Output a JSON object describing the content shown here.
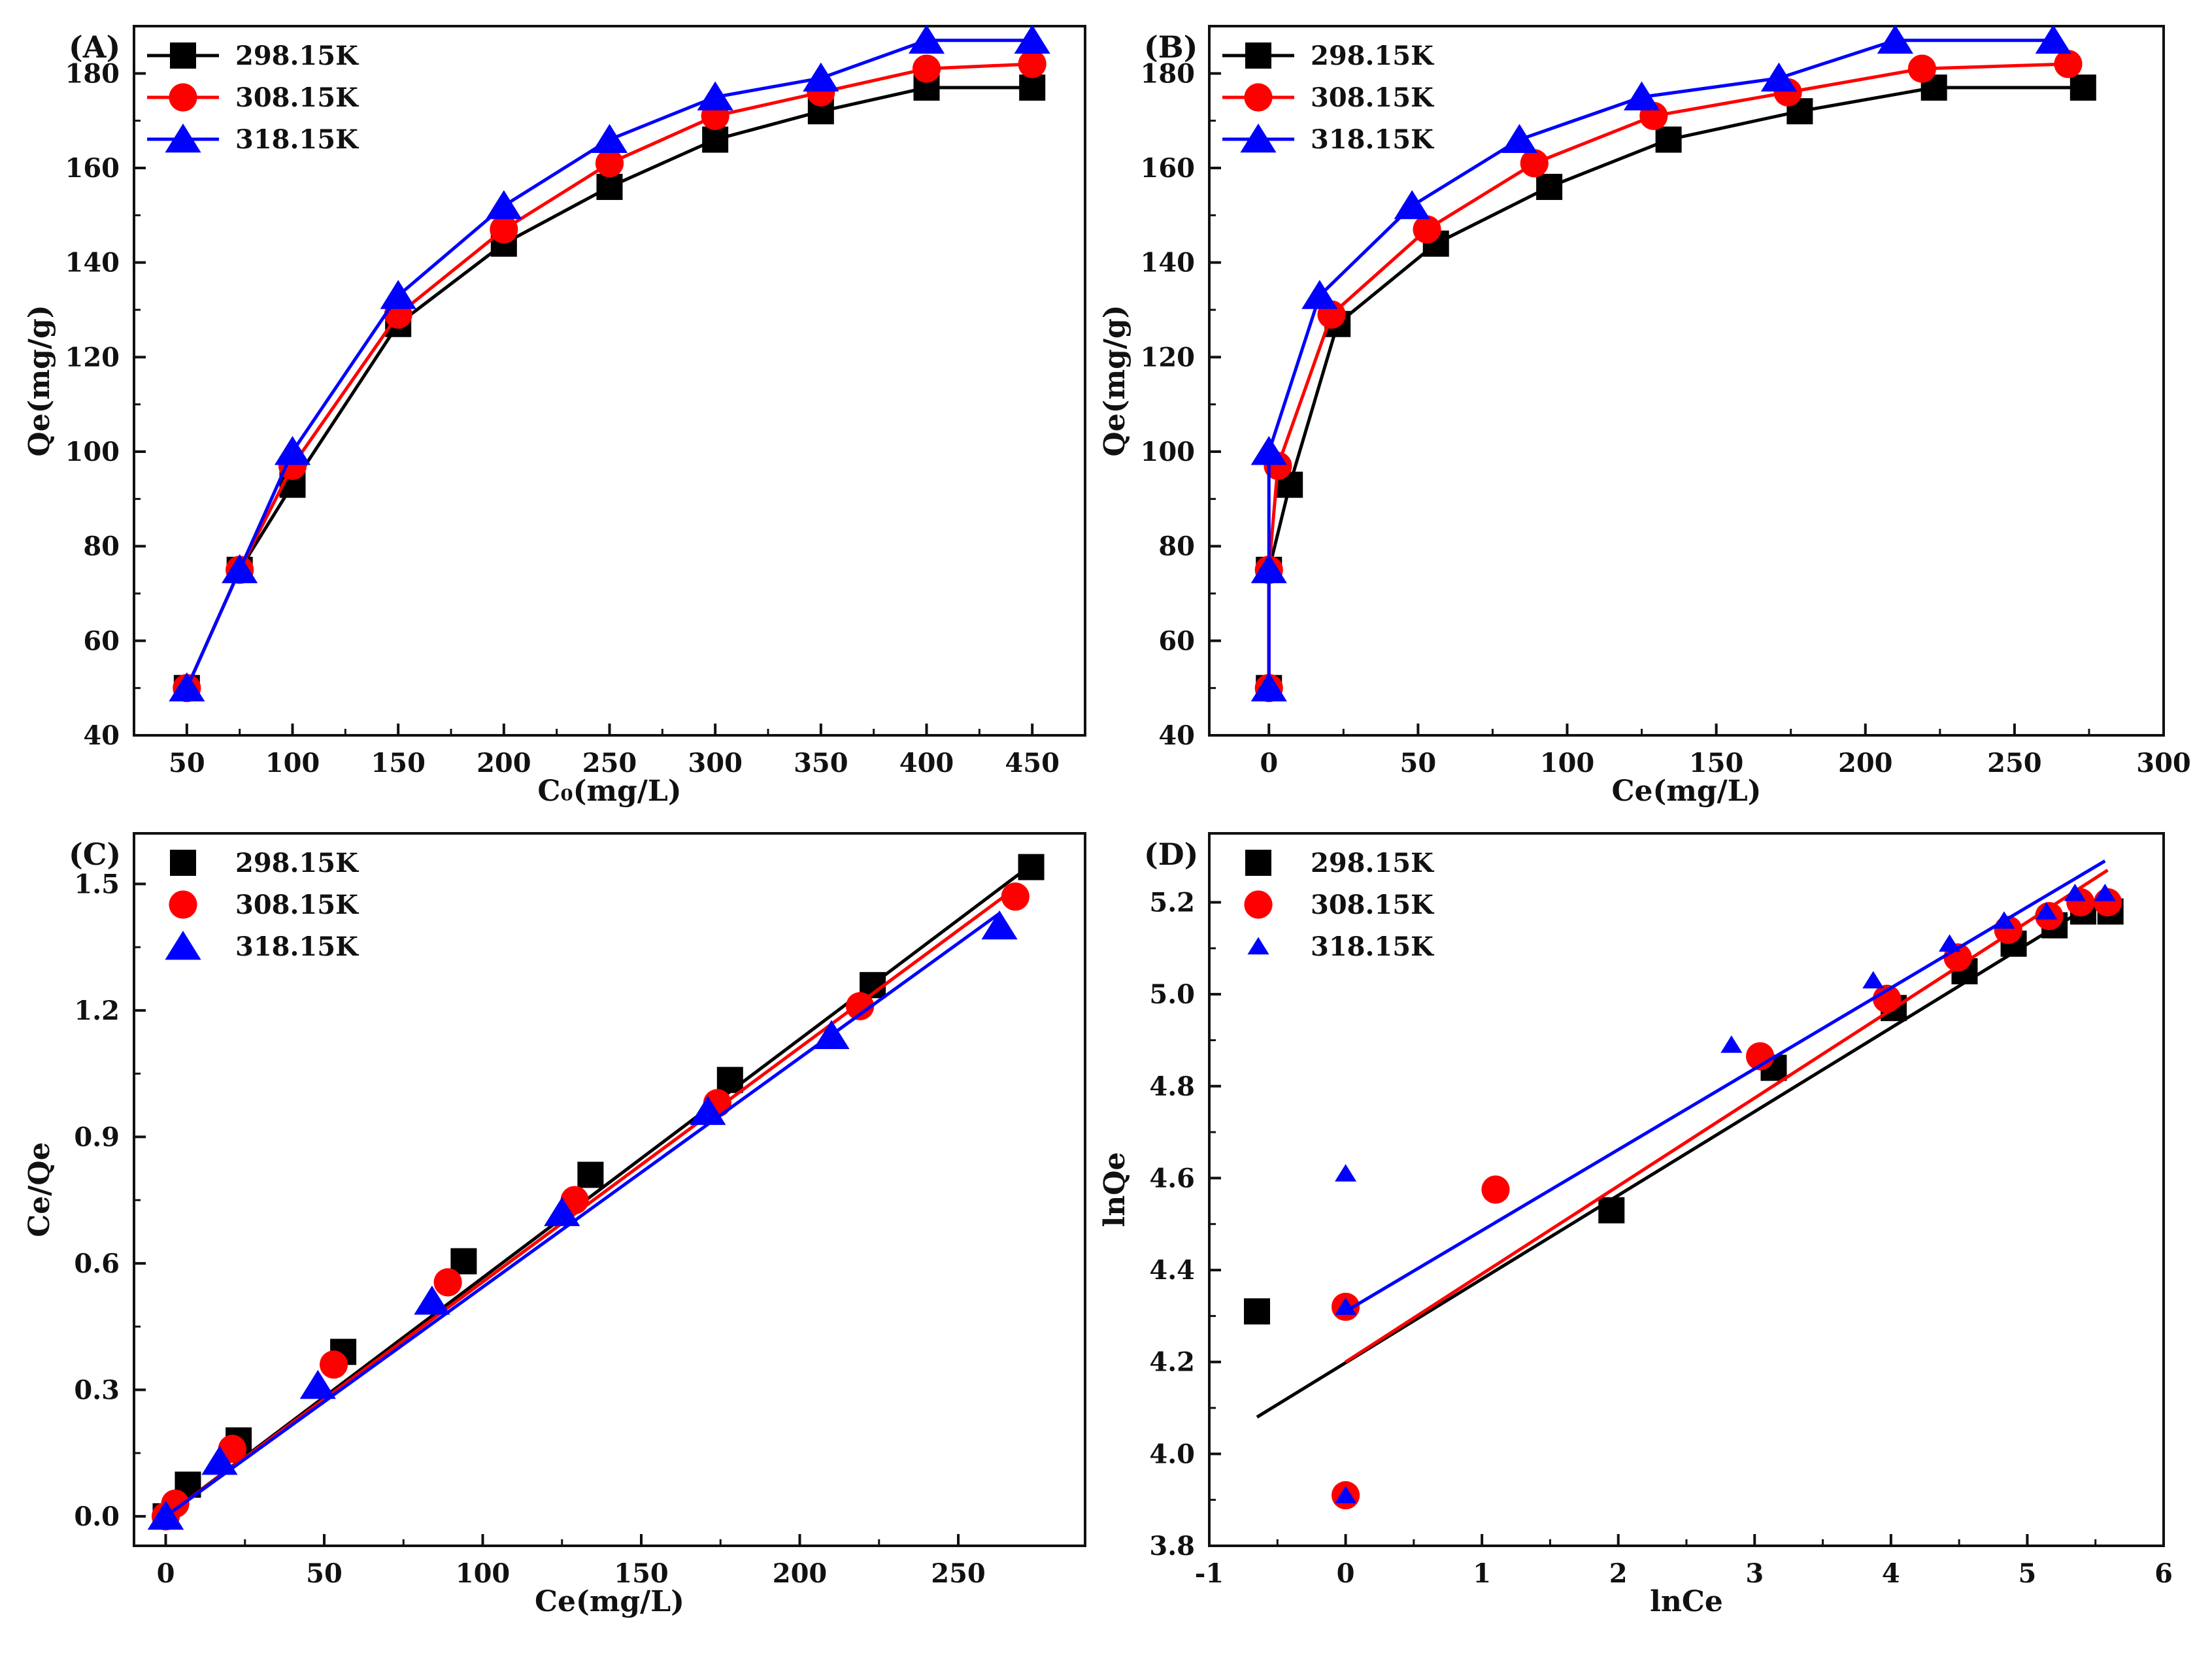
{
  "chart_data": [
    {
      "panel": "(A)",
      "type": "line",
      "xlabel": "C₀(mg/L)",
      "ylabel": "Qe(mg/g)",
      "xlim": [
        25,
        475
      ],
      "ylim": [
        40,
        190
      ],
      "xticks": [
        50,
        100,
        150,
        200,
        250,
        300,
        350,
        400,
        450
      ],
      "yticks": [
        40,
        60,
        80,
        100,
        120,
        140,
        160,
        180
      ],
      "legend_position": "top-left",
      "series": [
        {
          "name": "298.15K",
          "color": "#000000",
          "marker": "square",
          "line": true,
          "x": [
            50,
            75,
            100,
            150,
            200,
            250,
            300,
            350,
            400,
            450
          ],
          "y": [
            50,
            75,
            93,
            127,
            144,
            156,
            166,
            172,
            177,
            177
          ]
        },
        {
          "name": "308.15K",
          "color": "#ff0000",
          "marker": "circle",
          "line": true,
          "x": [
            50,
            75,
            100,
            150,
            200,
            250,
            300,
            350,
            400,
            450
          ],
          "y": [
            50,
            75,
            97,
            129,
            147,
            161,
            171,
            176,
            181,
            182
          ]
        },
        {
          "name": "318.15K",
          "color": "#0000ff",
          "marker": "triangle",
          "line": true,
          "x": [
            50,
            75,
            100,
            150,
            200,
            250,
            300,
            350,
            400,
            450
          ],
          "y": [
            50,
            75,
            100,
            133,
            152,
            166,
            175,
            179,
            187,
            187
          ]
        }
      ]
    },
    {
      "panel": "(B)",
      "type": "line",
      "xlabel": "Ce(mg/L)",
      "ylabel": "Qe(mg/g)",
      "xlim": [
        -20,
        300
      ],
      "ylim": [
        40,
        190
      ],
      "xticks": [
        0,
        50,
        100,
        150,
        200,
        250,
        300
      ],
      "yticks": [
        40,
        60,
        80,
        100,
        120,
        140,
        160,
        180
      ],
      "legend_position": "top-left",
      "series": [
        {
          "name": "298.15K",
          "color": "#000000",
          "marker": "square",
          "line": true,
          "x": [
            0,
            0,
            7,
            23,
            56,
            94,
            134,
            178,
            223,
            273
          ],
          "y": [
            50,
            75,
            93,
            127,
            144,
            156,
            166,
            172,
            177,
            177
          ]
        },
        {
          "name": "308.15K",
          "color": "#ff0000",
          "marker": "circle",
          "line": true,
          "x": [
            0,
            0,
            3,
            21,
            53,
            89,
            129,
            174,
            219,
            268
          ],
          "y": [
            50,
            75,
            97,
            129,
            147,
            161,
            171,
            176,
            181,
            182
          ]
        },
        {
          "name": "318.15K",
          "color": "#0000ff",
          "marker": "triangle",
          "line": true,
          "x": [
            0,
            0,
            0,
            17,
            48,
            84,
            125,
            171,
            210,
            263
          ],
          "y": [
            50,
            75,
            100,
            133,
            152,
            166,
            175,
            179,
            187,
            187
          ]
        }
      ]
    },
    {
      "panel": "(C)",
      "type": "scatter",
      "xlabel": "Ce(mg/L)",
      "ylabel": "Ce/Qe",
      "xlim": [
        -10,
        290
      ],
      "ylim": [
        -0.07,
        1.62
      ],
      "xticks": [
        0,
        50,
        100,
        150,
        200,
        250
      ],
      "yticks": [
        0.0,
        0.3,
        0.6,
        0.9,
        1.2,
        1.5
      ],
      "ytick_labels": [
        "0.0",
        "0.3",
        "0.6",
        "0.9",
        "1.2",
        "1.5"
      ],
      "legend_position": "top-left",
      "series": [
        {
          "name": "298.15K",
          "color": "#000000",
          "marker": "square",
          "x": [
            0,
            7,
            23,
            56,
            94,
            134,
            178,
            223,
            273
          ],
          "y": [
            0.0,
            0.075,
            0.18,
            0.39,
            0.605,
            0.81,
            1.035,
            1.26,
            1.54
          ],
          "fit": {
            "x": [
              0,
              273
            ],
            "y": [
              0.0,
              1.545
            ]
          }
        },
        {
          "name": "308.15K",
          "color": "#ff0000",
          "marker": "circle",
          "x": [
            0,
            3,
            21,
            53,
            89,
            129,
            174,
            219,
            268
          ],
          "y": [
            0.0,
            0.03,
            0.16,
            0.36,
            0.555,
            0.75,
            0.98,
            1.21,
            1.47
          ],
          "fit": {
            "x": [
              0,
              268
            ],
            "y": [
              0.0,
              1.49
            ]
          }
        },
        {
          "name": "318.15K",
          "color": "#0000ff",
          "marker": "triangle",
          "x": [
            0,
            0,
            17,
            48,
            84,
            125,
            171,
            210,
            263
          ],
          "y": [
            0.0,
            0.0,
            0.13,
            0.31,
            0.51,
            0.72,
            0.96,
            1.14,
            1.4
          ],
          "fit": {
            "x": [
              0,
              263
            ],
            "y": [
              0.0,
              1.43
            ]
          }
        }
      ]
    },
    {
      "panel": "(D)",
      "type": "scatter",
      "xlabel": "lnCe",
      "ylabel": "lnQe",
      "xlim": [
        -1,
        6
      ],
      "ylim": [
        3.8,
        5.35
      ],
      "xticks": [
        -1,
        0,
        1,
        2,
        3,
        4,
        5,
        6
      ],
      "yticks": [
        3.8,
        4.0,
        4.2,
        4.4,
        4.6,
        4.8,
        5.0,
        5.2
      ],
      "ytick_labels": [
        "3.8",
        "4.0",
        "4.2",
        "4.4",
        "4.6",
        "4.8",
        "5.0",
        "5.2"
      ],
      "legend_position": "top-left",
      "series": [
        {
          "name": "298.15K",
          "color": "#000000",
          "marker": "square",
          "x": [
            -0.65,
            1.95,
            3.14,
            4.02,
            4.54,
            4.9,
            5.2,
            5.41,
            5.61
          ],
          "y": [
            4.31,
            4.53,
            4.84,
            4.97,
            5.05,
            5.11,
            5.15,
            5.18,
            5.18
          ],
          "fit": {
            "x": [
              -0.65,
              5.61
            ],
            "y": [
              4.08,
              5.22
            ]
          }
        },
        {
          "name": "308.15K",
          "color": "#ff0000",
          "marker": "circle",
          "x": [
            0,
            0,
            1.1,
            3.04,
            3.97,
            4.49,
            4.86,
            5.16,
            5.39,
            5.59
          ],
          "y": [
            3.91,
            4.32,
            4.575,
            4.865,
            4.99,
            5.08,
            5.14,
            5.17,
            5.2,
            5.2
          ],
          "fit": {
            "x": [
              0,
              5.59
            ],
            "y": [
              4.2,
              5.27
            ]
          }
        },
        {
          "name": "318.15K",
          "color": "#0000ff",
          "marker": "triangle",
          "marker_size": "small",
          "x": [
            0,
            0,
            0,
            2.83,
            3.87,
            4.43,
            4.83,
            5.14,
            5.35,
            5.57
          ],
          "y": [
            3.91,
            4.32,
            4.61,
            4.89,
            5.03,
            5.11,
            5.16,
            5.18,
            5.22,
            5.22
          ],
          "fit": {
            "x": [
              0,
              5.57
            ],
            "y": [
              4.31,
              5.29
            ]
          }
        }
      ]
    }
  ]
}
